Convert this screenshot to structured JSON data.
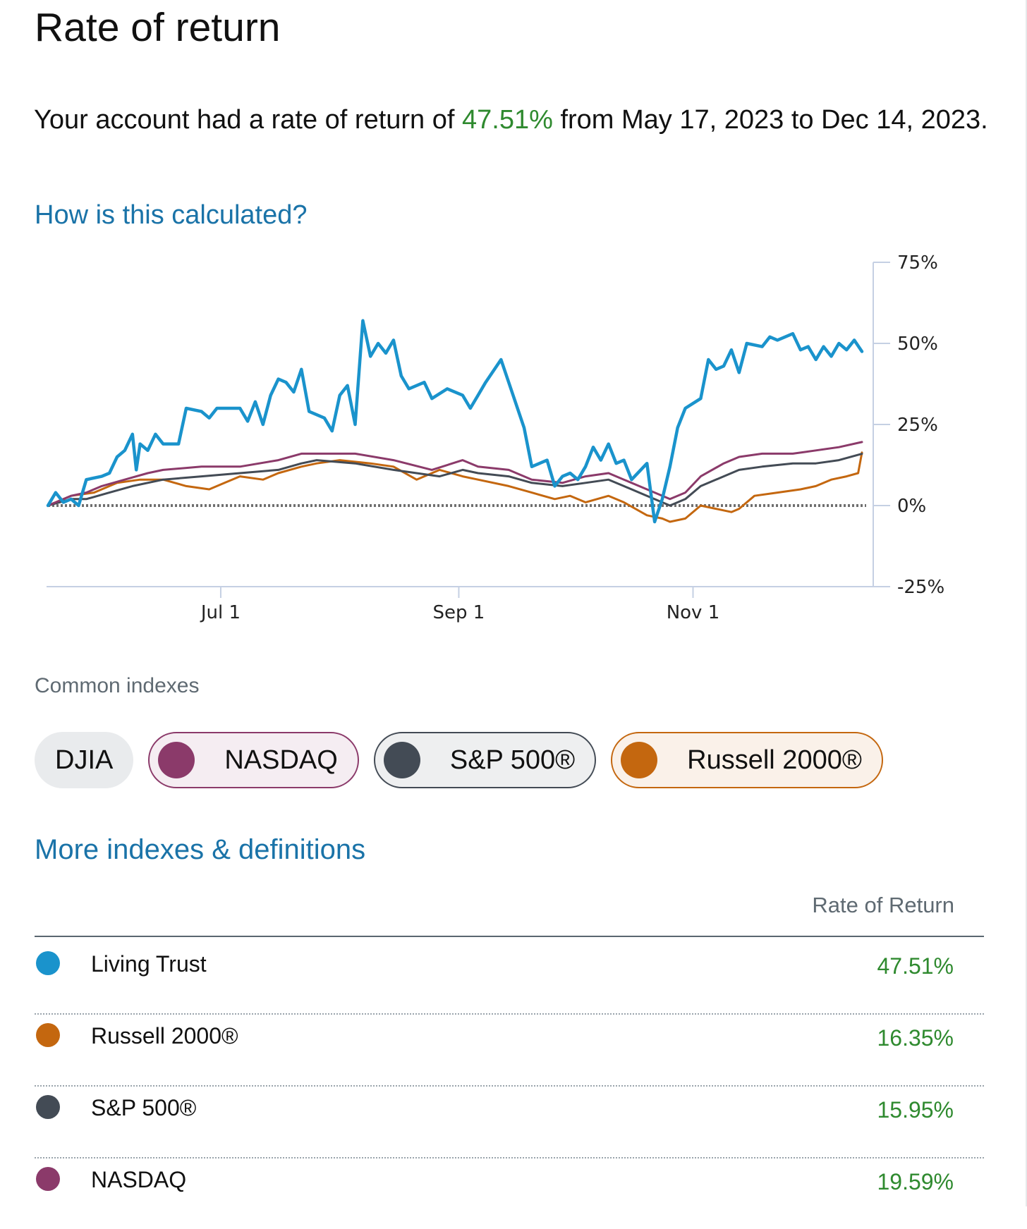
{
  "page": {
    "title": "Rate of return",
    "summary": {
      "prefix": "Your account had a rate of return of ",
      "rate": "47.51%",
      "suffix": " from May 17, 2023 to Dec 14, 2023."
    },
    "how_link": "How is this calculated?",
    "common_indexes_label": "Common indexes",
    "more_link": "More indexes & definitions"
  },
  "colors": {
    "account": "#1a93cc",
    "nasdaq": "#8b3a6a",
    "sp500": "#434b55",
    "russell": "#c4670f",
    "positive": "#2f8a2f",
    "link": "#1a73a8"
  },
  "chips": [
    {
      "label": "DJIA",
      "selected": false,
      "color": ""
    },
    {
      "label": "NASDAQ",
      "selected": true,
      "color": "#8b3a6a"
    },
    {
      "label": "S&P 500®",
      "selected": true,
      "color": "#434b55"
    },
    {
      "label": "Russell 2000®",
      "selected": true,
      "color": "#c4670f"
    }
  ],
  "table": {
    "header": "Rate of Return",
    "rows": [
      {
        "name": "Living Trust",
        "value": "47.51%",
        "color": "#1a93cc"
      },
      {
        "name": "Russell 2000®",
        "value": "16.35%",
        "color": "#c4670f"
      },
      {
        "name": "S&P 500®",
        "value": "15.95%",
        "color": "#434b55"
      },
      {
        "name": "NASDAQ",
        "value": "19.59%",
        "color": "#8b3a6a"
      }
    ]
  },
  "chart_data": {
    "type": "line",
    "title": "",
    "xlabel": "",
    "ylabel": "",
    "x_start": "2023-05-17",
    "x_end": "2023-12-14",
    "x_ticks": [
      {
        "label": "Jul 1",
        "day": 45
      },
      {
        "label": "Sep 1",
        "day": 107
      },
      {
        "label": "Nov 1",
        "day": 168
      }
    ],
    "y_ticks": [
      "75%",
      "50%",
      "25%",
      "0%",
      "-25%"
    ],
    "ylim": [
      -25,
      75
    ],
    "baseline": 0,
    "series": [
      {
        "name": "Living Trust",
        "color": "#1a93cc",
        "points": [
          [
            0,
            0
          ],
          [
            2,
            4
          ],
          [
            4,
            1
          ],
          [
            6,
            2
          ],
          [
            8,
            0
          ],
          [
            10,
            8
          ],
          [
            14,
            9
          ],
          [
            16,
            10
          ],
          [
            18,
            15
          ],
          [
            20,
            17
          ],
          [
            22,
            22
          ],
          [
            23,
            11
          ],
          [
            24,
            19
          ],
          [
            26,
            17
          ],
          [
            28,
            22
          ],
          [
            30,
            19
          ],
          [
            34,
            19
          ],
          [
            36,
            30
          ],
          [
            40,
            29
          ],
          [
            42,
            27
          ],
          [
            44,
            30
          ],
          [
            50,
            30
          ],
          [
            52,
            26
          ],
          [
            54,
            32
          ],
          [
            56,
            25
          ],
          [
            58,
            34
          ],
          [
            60,
            39
          ],
          [
            62,
            38
          ],
          [
            64,
            35
          ],
          [
            66,
            42
          ],
          [
            68,
            29
          ],
          [
            72,
            27
          ],
          [
            74,
            23
          ],
          [
            76,
            34
          ],
          [
            78,
            37
          ],
          [
            80,
            25
          ],
          [
            82,
            57
          ],
          [
            84,
            46
          ],
          [
            86,
            50
          ],
          [
            88,
            47
          ],
          [
            90,
            51
          ],
          [
            92,
            40
          ],
          [
            94,
            36
          ],
          [
            98,
            38
          ],
          [
            100,
            33
          ],
          [
            104,
            36
          ],
          [
            108,
            34
          ],
          [
            110,
            30
          ],
          [
            112,
            34
          ],
          [
            114,
            38
          ],
          [
            118,
            45
          ],
          [
            120,
            38
          ],
          [
            124,
            24
          ],
          [
            126,
            12
          ],
          [
            128,
            13
          ],
          [
            130,
            14
          ],
          [
            132,
            6
          ],
          [
            134,
            9
          ],
          [
            136,
            10
          ],
          [
            138,
            8
          ],
          [
            140,
            12
          ],
          [
            142,
            18
          ],
          [
            144,
            14
          ],
          [
            146,
            19
          ],
          [
            148,
            13
          ],
          [
            150,
            14
          ],
          [
            152,
            8
          ],
          [
            156,
            13
          ],
          [
            158,
            -5
          ],
          [
            160,
            2
          ],
          [
            162,
            12
          ],
          [
            164,
            24
          ],
          [
            166,
            30
          ],
          [
            170,
            33
          ],
          [
            172,
            45
          ],
          [
            174,
            42
          ],
          [
            176,
            43
          ],
          [
            178,
            48
          ],
          [
            180,
            41
          ],
          [
            182,
            50
          ],
          [
            186,
            49
          ],
          [
            188,
            52
          ],
          [
            190,
            51
          ],
          [
            194,
            53
          ],
          [
            196,
            48
          ],
          [
            198,
            49
          ],
          [
            200,
            45
          ],
          [
            202,
            49
          ],
          [
            204,
            46
          ],
          [
            206,
            50
          ],
          [
            208,
            48
          ],
          [
            210,
            51
          ],
          [
            212,
            47.51
          ]
        ]
      },
      {
        "name": "NASDAQ",
        "color": "#8b3a6a",
        "points": [
          [
            0,
            0
          ],
          [
            6,
            3
          ],
          [
            10,
            4
          ],
          [
            14,
            6
          ],
          [
            20,
            8
          ],
          [
            26,
            10
          ],
          [
            30,
            11
          ],
          [
            40,
            12
          ],
          [
            50,
            12
          ],
          [
            60,
            14
          ],
          [
            66,
            16
          ],
          [
            70,
            16
          ],
          [
            80,
            16
          ],
          [
            90,
            14
          ],
          [
            100,
            11
          ],
          [
            108,
            14
          ],
          [
            112,
            12
          ],
          [
            120,
            11
          ],
          [
            126,
            8
          ],
          [
            134,
            7
          ],
          [
            140,
            9
          ],
          [
            146,
            10
          ],
          [
            150,
            8
          ],
          [
            156,
            5
          ],
          [
            162,
            2
          ],
          [
            166,
            4
          ],
          [
            170,
            9
          ],
          [
            176,
            13
          ],
          [
            180,
            15
          ],
          [
            186,
            16
          ],
          [
            194,
            16
          ],
          [
            200,
            17
          ],
          [
            206,
            18
          ],
          [
            212,
            19.59
          ]
        ]
      },
      {
        "name": "S&P 500®",
        "color": "#434b55",
        "points": [
          [
            0,
            0
          ],
          [
            6,
            2
          ],
          [
            10,
            2
          ],
          [
            16,
            4
          ],
          [
            22,
            6
          ],
          [
            30,
            8
          ],
          [
            40,
            9
          ],
          [
            50,
            10
          ],
          [
            60,
            11
          ],
          [
            66,
            13
          ],
          [
            70,
            14
          ],
          [
            80,
            13
          ],
          [
            90,
            11
          ],
          [
            96,
            10
          ],
          [
            102,
            9
          ],
          [
            108,
            11
          ],
          [
            112,
            10
          ],
          [
            120,
            9
          ],
          [
            126,
            7
          ],
          [
            134,
            6
          ],
          [
            140,
            7
          ],
          [
            146,
            8
          ],
          [
            150,
            6
          ],
          [
            156,
            3
          ],
          [
            162,
            0
          ],
          [
            166,
            2
          ],
          [
            170,
            6
          ],
          [
            176,
            9
          ],
          [
            180,
            11
          ],
          [
            186,
            12
          ],
          [
            194,
            13
          ],
          [
            200,
            13
          ],
          [
            206,
            14
          ],
          [
            212,
            15.95
          ]
        ]
      },
      {
        "name": "Russell 2000®",
        "color": "#c4670f",
        "points": [
          [
            0,
            0
          ],
          [
            6,
            3
          ],
          [
            12,
            4
          ],
          [
            18,
            7
          ],
          [
            24,
            8
          ],
          [
            30,
            8
          ],
          [
            36,
            6
          ],
          [
            42,
            5
          ],
          [
            46,
            7
          ],
          [
            50,
            9
          ],
          [
            56,
            8
          ],
          [
            60,
            10
          ],
          [
            66,
            12
          ],
          [
            70,
            13
          ],
          [
            76,
            14
          ],
          [
            84,
            13
          ],
          [
            90,
            12
          ],
          [
            96,
            8
          ],
          [
            102,
            11
          ],
          [
            108,
            9
          ],
          [
            112,
            8
          ],
          [
            120,
            6
          ],
          [
            126,
            4
          ],
          [
            132,
            2
          ],
          [
            136,
            3
          ],
          [
            140,
            1
          ],
          [
            146,
            3
          ],
          [
            150,
            1
          ],
          [
            156,
            -3
          ],
          [
            160,
            -4
          ],
          [
            162,
            -5
          ],
          [
            166,
            -4
          ],
          [
            170,
            0
          ],
          [
            174,
            -1
          ],
          [
            178,
            -2
          ],
          [
            180,
            -1
          ],
          [
            184,
            3
          ],
          [
            190,
            4
          ],
          [
            196,
            5
          ],
          [
            200,
            6
          ],
          [
            204,
            8
          ],
          [
            208,
            9
          ],
          [
            211,
            10
          ],
          [
            212,
            16.35
          ]
        ]
      }
    ]
  }
}
